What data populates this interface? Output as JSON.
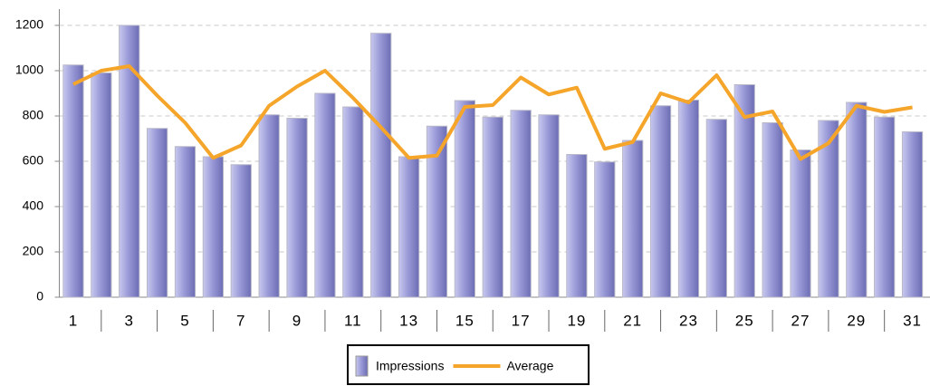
{
  "chart_data": {
    "type": "bar",
    "categories": [
      "1",
      null,
      "3",
      null,
      "5",
      null,
      "7",
      null,
      "9",
      null,
      "11",
      null,
      "13",
      null,
      "15",
      null,
      "17",
      null,
      "19",
      null,
      "21",
      null,
      "23",
      null,
      "25",
      null,
      "27",
      null,
      "29",
      null,
      "31"
    ],
    "series": [
      {
        "name": "Impressions",
        "type": "bar",
        "color": "#9a9ad8",
        "values": [
          1025,
          990,
          1200,
          745,
          665,
          620,
          585,
          805,
          790,
          900,
          840,
          1165,
          620,
          755,
          868,
          795,
          825,
          805,
          630,
          597,
          692,
          845,
          870,
          785,
          938,
          770,
          650,
          780,
          860,
          795,
          730
        ]
      },
      {
        "name": "Average",
        "type": "line",
        "color": "#f5a52a",
        "values": [
          940,
          1000,
          1020,
          890,
          770,
          615,
          670,
          845,
          930,
          1000,
          880,
          750,
          615,
          625,
          840,
          848,
          970,
          895,
          925,
          655,
          685,
          900,
          860,
          980,
          795,
          820,
          610,
          680,
          845,
          818,
          838
        ]
      }
    ],
    "ylim": [
      0,
      1200
    ],
    "yticks": [
      0,
      200,
      400,
      600,
      800,
      1000,
      1200
    ],
    "grid": true,
    "legend": "bottom"
  }
}
